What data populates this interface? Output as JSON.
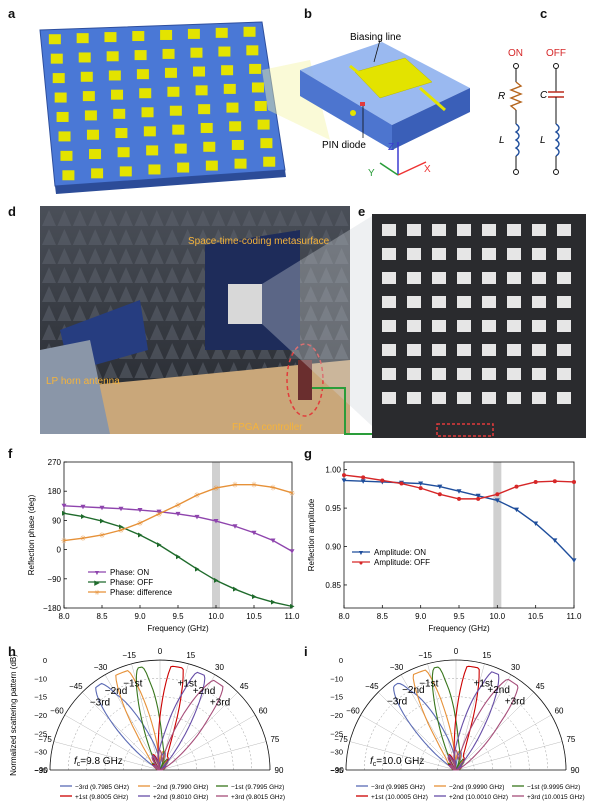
{
  "panels": {
    "a": {
      "label": "a"
    },
    "b": {
      "label": "b",
      "biasing_line": "Biasing line",
      "pin_diode": "PIN diode",
      "axis_x": "X",
      "axis_y": "Y",
      "axis_z": "Z"
    },
    "c": {
      "label": "c",
      "on": "ON",
      "off": "OFF",
      "r": "R",
      "c": "C",
      "l1": "L",
      "l2": "L"
    },
    "d": {
      "label": "d",
      "metasurface": "Space-time-coding metasurface",
      "horn": "LP horn antenna",
      "fpga": "FPGA controller"
    },
    "e": {
      "label": "e"
    },
    "f": {
      "label": "f"
    },
    "g": {
      "label": "g"
    },
    "h": {
      "label": "h",
      "fc": "f",
      "fc_sub": "c",
      "fc_val": "=9.8 GHz"
    },
    "i": {
      "label": "i",
      "fc": "f",
      "fc_sub": "c",
      "fc_val": "=10.0 GHz"
    }
  },
  "chart_data": [
    {
      "id": "f",
      "type": "line",
      "xlabel": "Frequency (GHz)",
      "ylabel": "Reflection phase (deg)",
      "xlim": [
        8.0,
        11.0
      ],
      "ylim": [
        -180,
        270
      ],
      "xticks": [
        "8.0",
        "8.5",
        "9.0",
        "9.5",
        "10.0",
        "10.5",
        "11.0"
      ],
      "yticks": [
        "−180",
        "−90",
        "0",
        "90",
        "180",
        "270"
      ],
      "highlight_x": 10.0,
      "x": [
        8.0,
        8.25,
        8.5,
        8.75,
        9.0,
        9.25,
        9.5,
        9.75,
        10.0,
        10.25,
        10.5,
        10.75,
        11.0
      ],
      "series": [
        {
          "name": "Phase: ON",
          "color": "#8e44ad",
          "values": [
            135,
            132,
            129,
            126,
            122,
            117,
            110,
            101,
            88,
            72,
            52,
            28,
            -5
          ]
        },
        {
          "name": "Phase: OFF",
          "color": "#1f6b2c",
          "values": [
            112,
            102,
            88,
            70,
            45,
            15,
            -22,
            -60,
            -95,
            -122,
            -145,
            -162,
            -175
          ]
        },
        {
          "name": "Phase: difference",
          "color": "#e69138",
          "values": [
            28,
            35,
            45,
            60,
            82,
            110,
            138,
            168,
            190,
            200,
            200,
            192,
            175
          ]
        }
      ]
    },
    {
      "id": "g",
      "type": "line",
      "xlabel": "Frequency (GHz)",
      "ylabel": "Reflection amplitude",
      "xlim": [
        8.0,
        11.0
      ],
      "ylim": [
        0.82,
        1.01
      ],
      "xticks": [
        "8.0",
        "8.5",
        "9.0",
        "9.5",
        "10.0",
        "10.5",
        "11.0"
      ],
      "yticks": [
        "0.85",
        "0.90",
        "0.95",
        "1.00"
      ],
      "highlight_x": 10.0,
      "x": [
        8.0,
        8.25,
        8.5,
        8.75,
        9.0,
        9.25,
        9.5,
        9.75,
        10.0,
        10.25,
        10.5,
        10.75,
        11.0
      ],
      "series": [
        {
          "name": "Amplitude: ON",
          "color": "#1f4e9c",
          "values": [
            0.986,
            0.985,
            0.984,
            0.983,
            0.982,
            0.978,
            0.972,
            0.966,
            0.96,
            0.948,
            0.93,
            0.908,
            0.882
          ]
        },
        {
          "name": "Amplitude: OFF",
          "color": "#d62728",
          "values": [
            0.993,
            0.99,
            0.986,
            0.982,
            0.976,
            0.968,
            0.962,
            0.962,
            0.968,
            0.978,
            0.984,
            0.985,
            0.984
          ]
        }
      ]
    },
    {
      "id": "h",
      "type": "polar",
      "ylabel": "Normalized scattering pattern (dB)",
      "angle_ticks": [
        "−90",
        "−75",
        "−60",
        "−45",
        "−30",
        "−15",
        "0",
        "15",
        "30",
        "45",
        "60",
        "75",
        "90"
      ],
      "radial_ticks": [
        "0",
        "−10",
        "−15",
        "−20",
        "−25",
        "−30",
        "−35"
      ],
      "orders": [
        "−3rd",
        "−2nd",
        "−1st",
        "+1st",
        "+2nd",
        "+3rd"
      ],
      "series": [
        {
          "name": "−3rd (9.7985 GHz)",
          "color": "#5b6bb5",
          "angle": -35,
          "width": 14
        },
        {
          "name": "−2nd (9.7990 GHz)",
          "color": "#e69138",
          "angle": -22,
          "width": 12
        },
        {
          "name": "−1st (9.7995 GHz)",
          "color": "#38761d",
          "angle": -10,
          "width": 10
        },
        {
          "name": "+1st (9.8005 GHz)",
          "color": "#cc0000",
          "angle": 10,
          "width": 10
        },
        {
          "name": "+2nd (9.8010 GHz)",
          "color": "#674ea7",
          "angle": 22,
          "width": 12
        },
        {
          "name": "+3rd (9.8015 GHz)",
          "color": "#a64d79",
          "angle": 35,
          "width": 14
        }
      ]
    },
    {
      "id": "i",
      "type": "polar",
      "angle_ticks": [
        "−90",
        "−75",
        "−60",
        "−45",
        "−30",
        "−15",
        "0",
        "15",
        "30",
        "45",
        "60",
        "75",
        "90"
      ],
      "radial_ticks": [
        "0",
        "−10",
        "−15",
        "−20",
        "−25",
        "−30",
        "−35"
      ],
      "orders": [
        "−3rd",
        "−2nd",
        "−1st",
        "+1st",
        "+2nd",
        "+3rd"
      ],
      "series": [
        {
          "name": "−3rd (9.9985 GHz)",
          "color": "#5b6bb5",
          "angle": -34,
          "width": 14
        },
        {
          "name": "−2nd (9.9990 GHz)",
          "color": "#e69138",
          "angle": -21,
          "width": 12
        },
        {
          "name": "−1st (9.9995 GHz)",
          "color": "#38761d",
          "angle": -10,
          "width": 10
        },
        {
          "name": "+1st (10.0005 GHz)",
          "color": "#cc0000",
          "angle": 10,
          "width": 10
        },
        {
          "name": "+2nd (10.0010 GHz)",
          "color": "#674ea7",
          "angle": 21,
          "width": 12
        },
        {
          "name": "+3rd (10.0015 GHz)",
          "color": "#a64d79",
          "angle": 34,
          "width": 14
        }
      ]
    }
  ]
}
